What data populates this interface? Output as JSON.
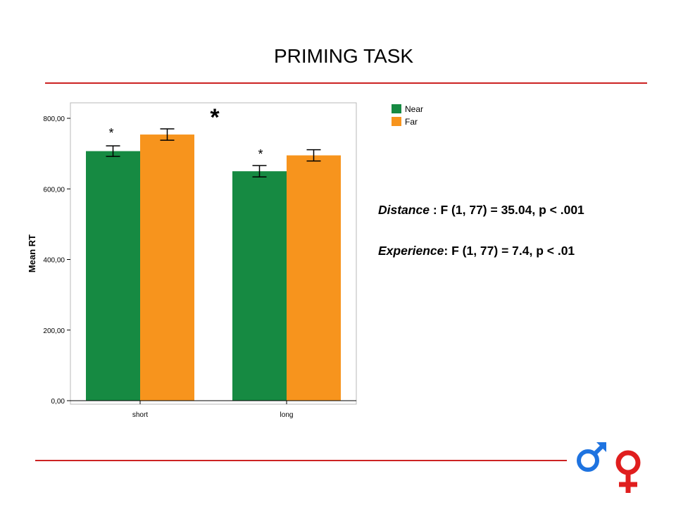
{
  "slide": {
    "title": "PRIMING TASK"
  },
  "stats": {
    "distance_term": "Distance",
    "distance_result": " : F (1, 77) = 35.04, p < .001",
    "experience_term": "Experience",
    "experience_result": ": F (1, 77) = 7.4, p < .01"
  },
  "chart_data": {
    "type": "bar",
    "title": "",
    "xlabel": "",
    "ylabel": "Mean RT",
    "ylim": [
      0,
      800
    ],
    "yticks": [
      "0,00",
      "200,00",
      "400,00",
      "600,00",
      "800,00"
    ],
    "categories": [
      "short",
      "long"
    ],
    "series": [
      {
        "name": "Near",
        "color": "#168a42",
        "values": [
          707,
          650
        ],
        "errors": [
          15,
          16
        ]
      },
      {
        "name": "Far",
        "color": "#f7941d",
        "values": [
          754,
          695
        ],
        "errors": [
          16,
          16
        ]
      }
    ],
    "annotations": {
      "within_short": "*",
      "within_long": "*",
      "between": "*"
    },
    "legend_position": "top-right, outside",
    "grid": false
  },
  "colors": {
    "rule": "#cc2222",
    "male_symbol": "#1e73e0",
    "female_symbol": "#e01e1e"
  }
}
